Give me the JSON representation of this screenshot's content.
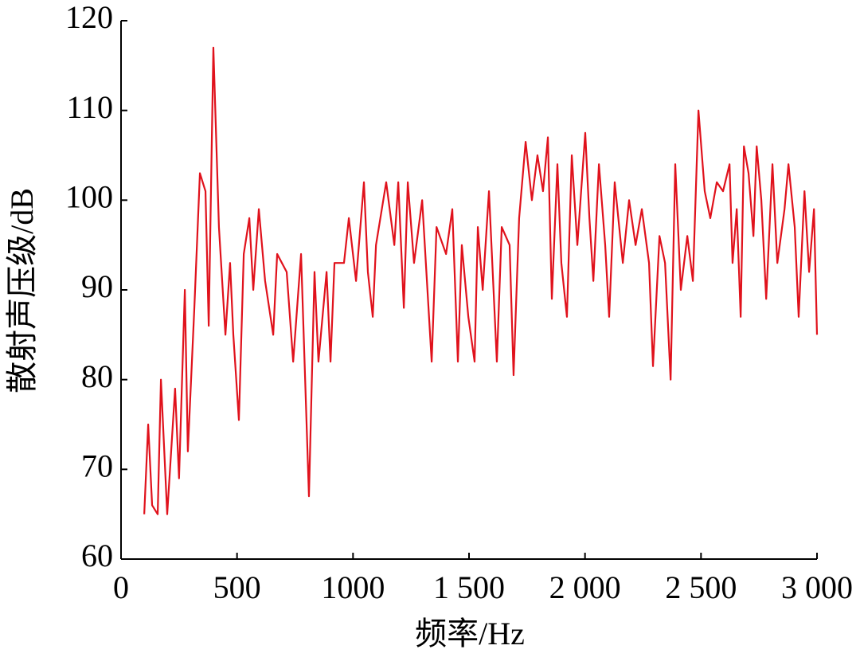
{
  "chart_data": {
    "type": "line",
    "xlabel": "频率/Hz",
    "ylabel": "散射声压级/dB",
    "xlim": [
      0,
      3000
    ],
    "ylim": [
      60,
      120
    ],
    "xticks": [
      0,
      500,
      1000,
      {
        "value": 1500,
        "label": "1 500"
      },
      {
        "value": 2000,
        "label": "2 000"
      },
      {
        "value": 2500,
        "label": "2 500"
      },
      {
        "value": 3000,
        "label": "3 000"
      }
    ],
    "yticks": [
      60,
      70,
      80,
      90,
      100,
      110,
      120
    ],
    "grid": false,
    "series": [
      {
        "name": "散射声压级",
        "color": "#e0121c",
        "x": [
          100,
          117,
          134,
          158,
          172,
          199,
          233,
          250,
          275,
          288,
          316,
          340,
          364,
          378,
          398,
          422,
          450,
          470,
          484,
          508,
          529,
          553,
          570,
          594,
          621,
          656,
          673,
          714,
          742,
          776,
          810,
          834,
          851,
          886,
          903,
          920,
          961,
          982,
          1013,
          1047,
          1064,
          1085,
          1099,
          1143,
          1178,
          1195,
          1219,
          1236,
          1263,
          1298,
          1339,
          1360,
          1401,
          1428,
          1452,
          1469,
          1497,
          1524,
          1538,
          1559,
          1586,
          1620,
          1641,
          1675,
          1692,
          1716,
          1744,
          1771,
          1795,
          1819,
          1840,
          1857,
          1881,
          1898,
          1922,
          1943,
          1967,
          2001,
          2019,
          2036,
          2060,
          2087,
          2104,
          2128,
          2163,
          2190,
          2218,
          2245,
          2276,
          2293,
          2321,
          2345,
          2369,
          2389,
          2413,
          2441,
          2465,
          2489,
          2516,
          2540,
          2568,
          2595,
          2623,
          2636,
          2654,
          2671,
          2685,
          2705,
          2726,
          2740,
          2760,
          2781,
          2808,
          2829,
          2860,
          2877,
          2904,
          2921,
          2946,
          2966,
          2987,
          3000
        ],
        "values": [
          65,
          75,
          66,
          65,
          80,
          65,
          79,
          69,
          90,
          72,
          88,
          103,
          101,
          86,
          117,
          97,
          85,
          93,
          85,
          75.5,
          94,
          98,
          90,
          99,
          91,
          85,
          94,
          92,
          82,
          94,
          67,
          92,
          82,
          92,
          82,
          93,
          93,
          98,
          91,
          102,
          92,
          87,
          95,
          102,
          95,
          102,
          88,
          102,
          93,
          100,
          82,
          97,
          94,
          99,
          82,
          95,
          87,
          82,
          97,
          90,
          101,
          82,
          97,
          95,
          80.5,
          98,
          106.5,
          100,
          105,
          101,
          107,
          89,
          104,
          93,
          87,
          105,
          95,
          107.5,
          98,
          91,
          104,
          95,
          87,
          102,
          93,
          100,
          95,
          99,
          93,
          81.5,
          96,
          93,
          80,
          104,
          90,
          96,
          91,
          110,
          101,
          98,
          102,
          101,
          104,
          93,
          99,
          87,
          106,
          103,
          96,
          106,
          100,
          89,
          104,
          93,
          99,
          104,
          97,
          87,
          101,
          92,
          99,
          85
        ]
      }
    ]
  }
}
